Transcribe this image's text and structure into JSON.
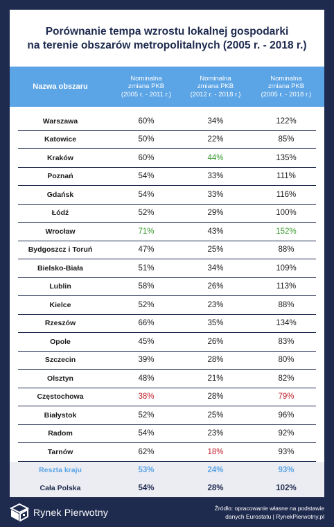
{
  "title_line1": "Porównanie tempa wzrostu lokalnej gospodarki",
  "title_line2": "na terenie obszarów metropolitalnych (2005 r. - 2018 r.)",
  "header": {
    "name": "Nazwa obszaru",
    "col1": "Nominalna\nzmiana PKB\n(2005 r. - 2011 r.)",
    "col2": "Nominalna\nzmiana PKB\n(2012 r. - 2018 r.)",
    "col3": "Nominalna\nzmiana PKB\n(2005 r. - 2018 r.)"
  },
  "rows": [
    {
      "name": "Warszawa",
      "v1": "60%",
      "v2": "34%",
      "v3": "122%"
    },
    {
      "name": "Katowice",
      "v1": "50%",
      "v2": "22%",
      "v3": "85%"
    },
    {
      "name": "Kraków",
      "v1": "60%",
      "v2": "44%",
      "v3": "135%"
    },
    {
      "name": "Poznań",
      "v1": "54%",
      "v2": "33%",
      "v3": "111%"
    },
    {
      "name": "Gdańsk",
      "v1": "54%",
      "v2": "33%",
      "v3": "116%"
    },
    {
      "name": "Łódź",
      "v1": "52%",
      "v2": "29%",
      "v3": "100%"
    },
    {
      "name": "Wrocław",
      "v1": "71%",
      "v2": "43%",
      "v3": "152%"
    },
    {
      "name": "Bydgoszcz i Toruń",
      "v1": "47%",
      "v2": "25%",
      "v3": "88%"
    },
    {
      "name": "Bielsko-Biała",
      "v1": "51%",
      "v2": "34%",
      "v3": "109%"
    },
    {
      "name": "Lublin",
      "v1": "58%",
      "v2": "26%",
      "v3": "113%"
    },
    {
      "name": "Kielce",
      "v1": "52%",
      "v2": "23%",
      "v3": "88%"
    },
    {
      "name": "Rzeszów",
      "v1": "66%",
      "v2": "35%",
      "v3": "134%"
    },
    {
      "name": "Opole",
      "v1": "45%",
      "v2": "26%",
      "v3": "83%"
    },
    {
      "name": "Szczecin",
      "v1": "39%",
      "v2": "28%",
      "v3": "80%"
    },
    {
      "name": "Olsztyn",
      "v1": "48%",
      "v2": "21%",
      "v3": "82%"
    },
    {
      "name": "Częstochowa",
      "v1": "38%",
      "v2": "28%",
      "v3": "79%"
    },
    {
      "name": "Białystok",
      "v1": "52%",
      "v2": "25%",
      "v3": "96%"
    },
    {
      "name": "Radom",
      "v1": "54%",
      "v2": "23%",
      "v3": "92%"
    },
    {
      "name": "Tarnów",
      "v1": "62%",
      "v2": "18%",
      "v3": "93%"
    },
    {
      "name": "Reszta kraju",
      "v1": "53%",
      "v2": "24%",
      "v3": "93%"
    },
    {
      "name": "Cała Polska",
      "v1": "54%",
      "v2": "28%",
      "v3": "102%"
    }
  ],
  "colors": {
    "navy": "#1e2a4e",
    "header_blue": "#5ba4e5",
    "highlight_max": "#3a9c2e",
    "highlight_min": "#c0202a"
  },
  "logo_text": "Rynek Pierwotny",
  "source_line1": "Źródło: opracowanie własne na podstawie",
  "source_line2": "danych Eurostatu | RynekPierwotny.pl"
}
